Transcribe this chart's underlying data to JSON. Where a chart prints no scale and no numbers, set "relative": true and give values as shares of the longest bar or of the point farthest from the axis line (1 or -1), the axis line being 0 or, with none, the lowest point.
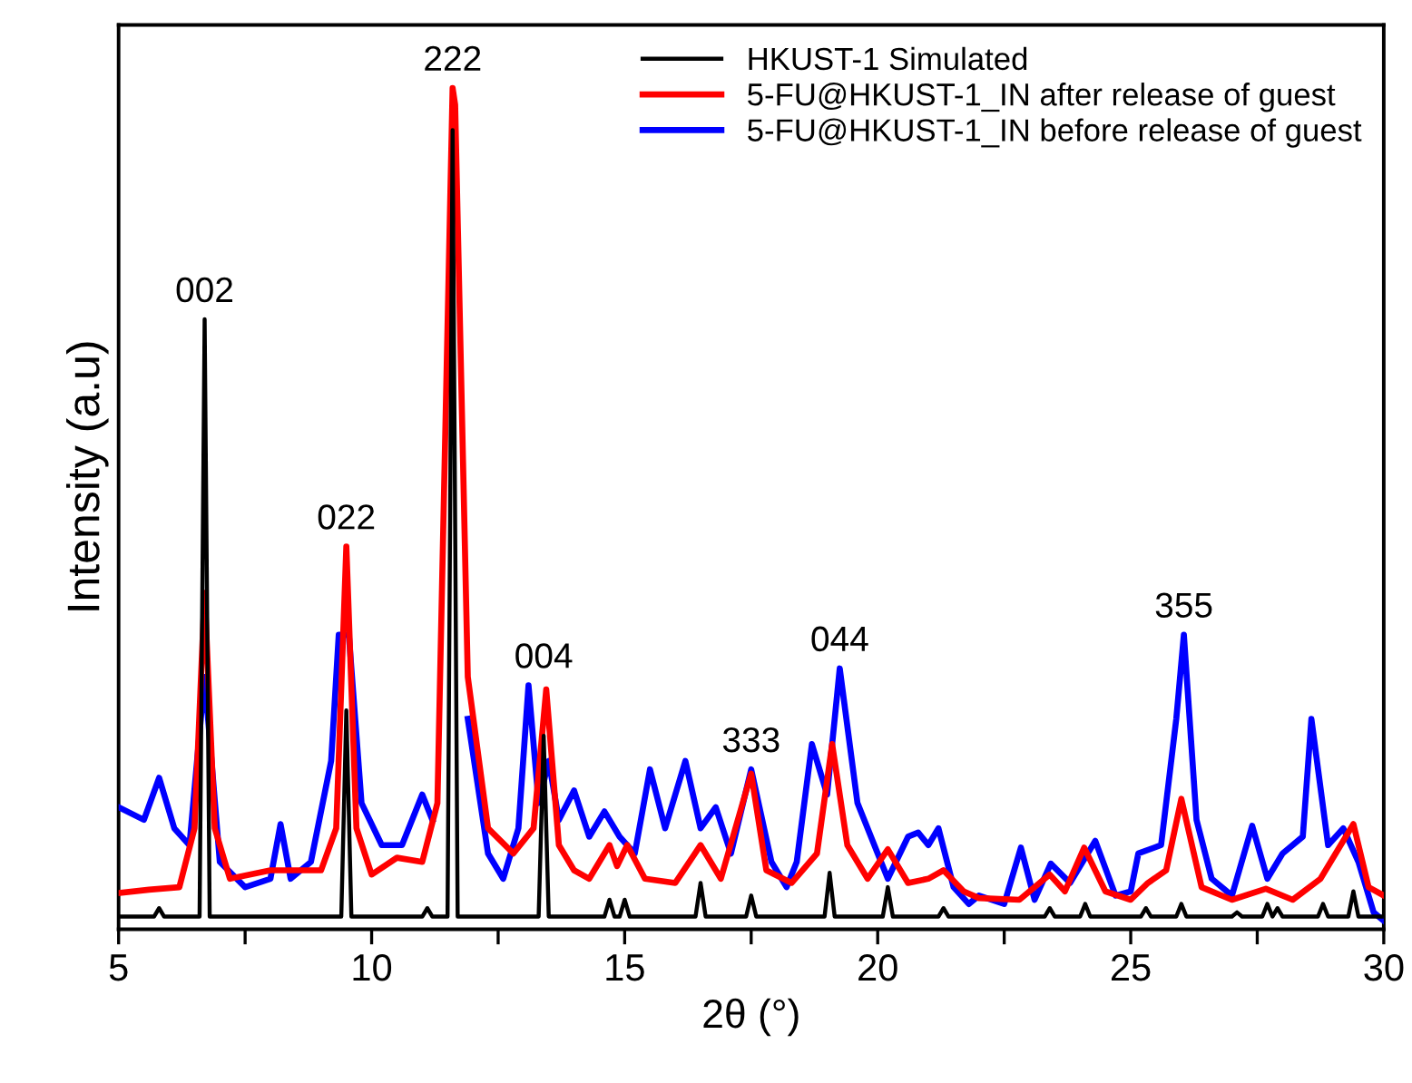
{
  "chart_data": {
    "type": "line",
    "relative": true,
    "xlabel": "2θ (°)",
    "ylabel": "Intensity (a.u)",
    "xlim": [
      5,
      30
    ],
    "xticks": [
      5,
      {
        "value": 7.5,
        "label": null
      },
      10,
      {
        "value": 12.5,
        "label": null
      },
      15,
      {
        "value": 17.5,
        "label": null
      },
      20,
      {
        "value": 22.5,
        "label": null
      },
      25,
      {
        "value": 27.5,
        "label": null
      },
      30
    ],
    "legend": "top right",
    "grid": false,
    "marker": "none",
    "line_style": "solid",
    "annotations": [
      {
        "text": "002",
        "x": 6.7,
        "y": 0.725
      },
      {
        "text": "022",
        "x": 9.5,
        "y": 0.455
      },
      {
        "text": "222",
        "x": 11.6,
        "y": 1.0
      },
      {
        "text": "004",
        "x": 13.4,
        "y": 0.29
      },
      {
        "text": "333",
        "x": 17.5,
        "y": 0.19
      },
      {
        "text": "044",
        "x": 19.25,
        "y": 0.31
      },
      {
        "text": "355",
        "x": 26.05,
        "y": 0.35
      }
    ],
    "series": [
      {
        "name": "HKUST-1 Simulated",
        "color": "#000000",
        "x": [
          5,
          5.7,
          5.8,
          5.9,
          6.6,
          6.7,
          6.8,
          9.4,
          9.5,
          9.6,
          11.0,
          11.1,
          11.2,
          11.5,
          11.6,
          11.7,
          13.3,
          13.4,
          13.5,
          14.6,
          14.7,
          14.8,
          14.9,
          15.0,
          15.1,
          16.4,
          16.5,
          16.6,
          17.4,
          17.5,
          17.6,
          18.95,
          19.05,
          19.15,
          20.1,
          20.2,
          20.3,
          21.2,
          21.3,
          21.4,
          23.3,
          23.4,
          23.5,
          24.0,
          24.1,
          24.2,
          25.2,
          25.3,
          25.4,
          25.9,
          26.0,
          26.1,
          27.0,
          27.1,
          27.2,
          27.6,
          27.7,
          27.8,
          27.9,
          28.0,
          28.7,
          28.8,
          28.9,
          29.3,
          29.4,
          29.5,
          30
        ],
        "values": [
          0.015,
          0.015,
          0.025,
          0.015,
          0.015,
          0.725,
          0.015,
          0.015,
          0.26,
          0.015,
          0.015,
          0.025,
          0.015,
          0.015,
          0.95,
          0.015,
          0.015,
          0.23,
          0.015,
          0.015,
          0.035,
          0.015,
          0.015,
          0.035,
          0.015,
          0.015,
          0.055,
          0.015,
          0.015,
          0.04,
          0.015,
          0.015,
          0.067,
          0.015,
          0.015,
          0.05,
          0.015,
          0.015,
          0.025,
          0.015,
          0.015,
          0.025,
          0.015,
          0.015,
          0.03,
          0.015,
          0.015,
          0.025,
          0.015,
          0.015,
          0.03,
          0.015,
          0.015,
          0.02,
          0.015,
          0.015,
          0.03,
          0.015,
          0.025,
          0.015,
          0.015,
          0.03,
          0.015,
          0.015,
          0.045,
          0.015,
          0.015
        ]
      },
      {
        "name": "5-FU@HKUST-1_IN after release of guest",
        "color": "#ff0000",
        "x": [
          5,
          5.6,
          6.2,
          6.5,
          6.7,
          6.9,
          7.2,
          8.0,
          9.0,
          9.3,
          9.5,
          9.7,
          10.0,
          10.5,
          11.0,
          11.3,
          11.6,
          11.65,
          11.9,
          12.3,
          12.8,
          13.2,
          13.45,
          13.7,
          14.0,
          14.3,
          14.7,
          14.85,
          15.05,
          15.4,
          16.0,
          16.5,
          16.9,
          17.5,
          17.8,
          18.3,
          18.8,
          19.1,
          19.4,
          19.8,
          20.2,
          20.6,
          21.0,
          21.3,
          21.7,
          22.0,
          22.8,
          23.4,
          23.7,
          24.08,
          24.5,
          25.0,
          25.34,
          25.7,
          26.0,
          26.4,
          27.0,
          27.67,
          28.2,
          28.75,
          29.4,
          29.7,
          30
        ],
        "values": [
          0.043,
          0.047,
          0.05,
          0.12,
          0.4,
          0.12,
          0.06,
          0.07,
          0.07,
          0.12,
          0.455,
          0.12,
          0.065,
          0.085,
          0.08,
          0.15,
          1.0,
          0.98,
          0.3,
          0.12,
          0.09,
          0.12,
          0.285,
          0.1,
          0.07,
          0.06,
          0.1,
          0.075,
          0.1,
          0.06,
          0.055,
          0.1,
          0.06,
          0.185,
          0.07,
          0.055,
          0.09,
          0.22,
          0.1,
          0.06,
          0.095,
          0.055,
          0.06,
          0.07,
          0.045,
          0.037,
          0.035,
          0.065,
          0.045,
          0.097,
          0.045,
          0.035,
          0.055,
          0.07,
          0.155,
          0.05,
          0.035,
          0.048,
          0.035,
          0.06,
          0.125,
          0.05,
          0.04
        ]
      },
      {
        "name": "5-FU@HKUST-1_IN before release of guest",
        "color": "#0000ff",
        "x": [
          5,
          5.5,
          5.8,
          6.1,
          6.4,
          6.7,
          7.0,
          7.5,
          8.0,
          8.2,
          8.4,
          8.8,
          9.2,
          9.35,
          9.55,
          9.8,
          10.2,
          10.6,
          11.0,
          11.2,
          11.6,
          11.9,
          12.3,
          12.6,
          12.9,
          13.1,
          13.3,
          13.5,
          13.7,
          14.0,
          14.3,
          14.6,
          14.9,
          15.2,
          15.5,
          15.8,
          16.2,
          16.5,
          16.8,
          17.1,
          17.5,
          17.9,
          18.2,
          18.4,
          18.7,
          19.0,
          19.25,
          19.6,
          20.0,
          20.2,
          20.6,
          20.8,
          21.0,
          21.2,
          21.5,
          21.8,
          22.0,
          22.5,
          22.83,
          23.1,
          23.42,
          23.8,
          24.3,
          24.7,
          25.0,
          25.15,
          25.6,
          25.9,
          26.05,
          26.3,
          26.6,
          27.0,
          27.4,
          27.7,
          28.0,
          28.4,
          28.57,
          28.9,
          29.2,
          29.5,
          29.8,
          30
        ],
        "values": [
          0.145,
          0.13,
          0.18,
          0.12,
          0.1,
          0.3,
          0.08,
          0.05,
          0.06,
          0.125,
          0.06,
          0.08,
          0.2,
          0.35,
          0.35,
          0.15,
          0.1,
          0.1,
          0.16,
          0.13,
          null,
          0.25,
          0.09,
          0.06,
          0.12,
          0.29,
          0.15,
          0.2,
          0.13,
          0.165,
          0.11,
          0.14,
          0.11,
          0.09,
          0.19,
          0.12,
          0.2,
          0.12,
          0.145,
          0.09,
          0.19,
          0.08,
          0.05,
          0.08,
          0.22,
          0.16,
          0.31,
          0.15,
          0.09,
          0.06,
          0.11,
          0.115,
          0.1,
          0.12,
          0.05,
          0.03,
          0.04,
          0.03,
          0.097,
          0.035,
          0.078,
          0.055,
          0.105,
          0.04,
          0.045,
          0.09,
          0.1,
          0.25,
          0.35,
          0.13,
          0.06,
          0.04,
          0.123,
          0.06,
          0.09,
          0.11,
          0.25,
          0.1,
          0.12,
          0.08,
          0.02,
          0.01
        ]
      }
    ]
  }
}
